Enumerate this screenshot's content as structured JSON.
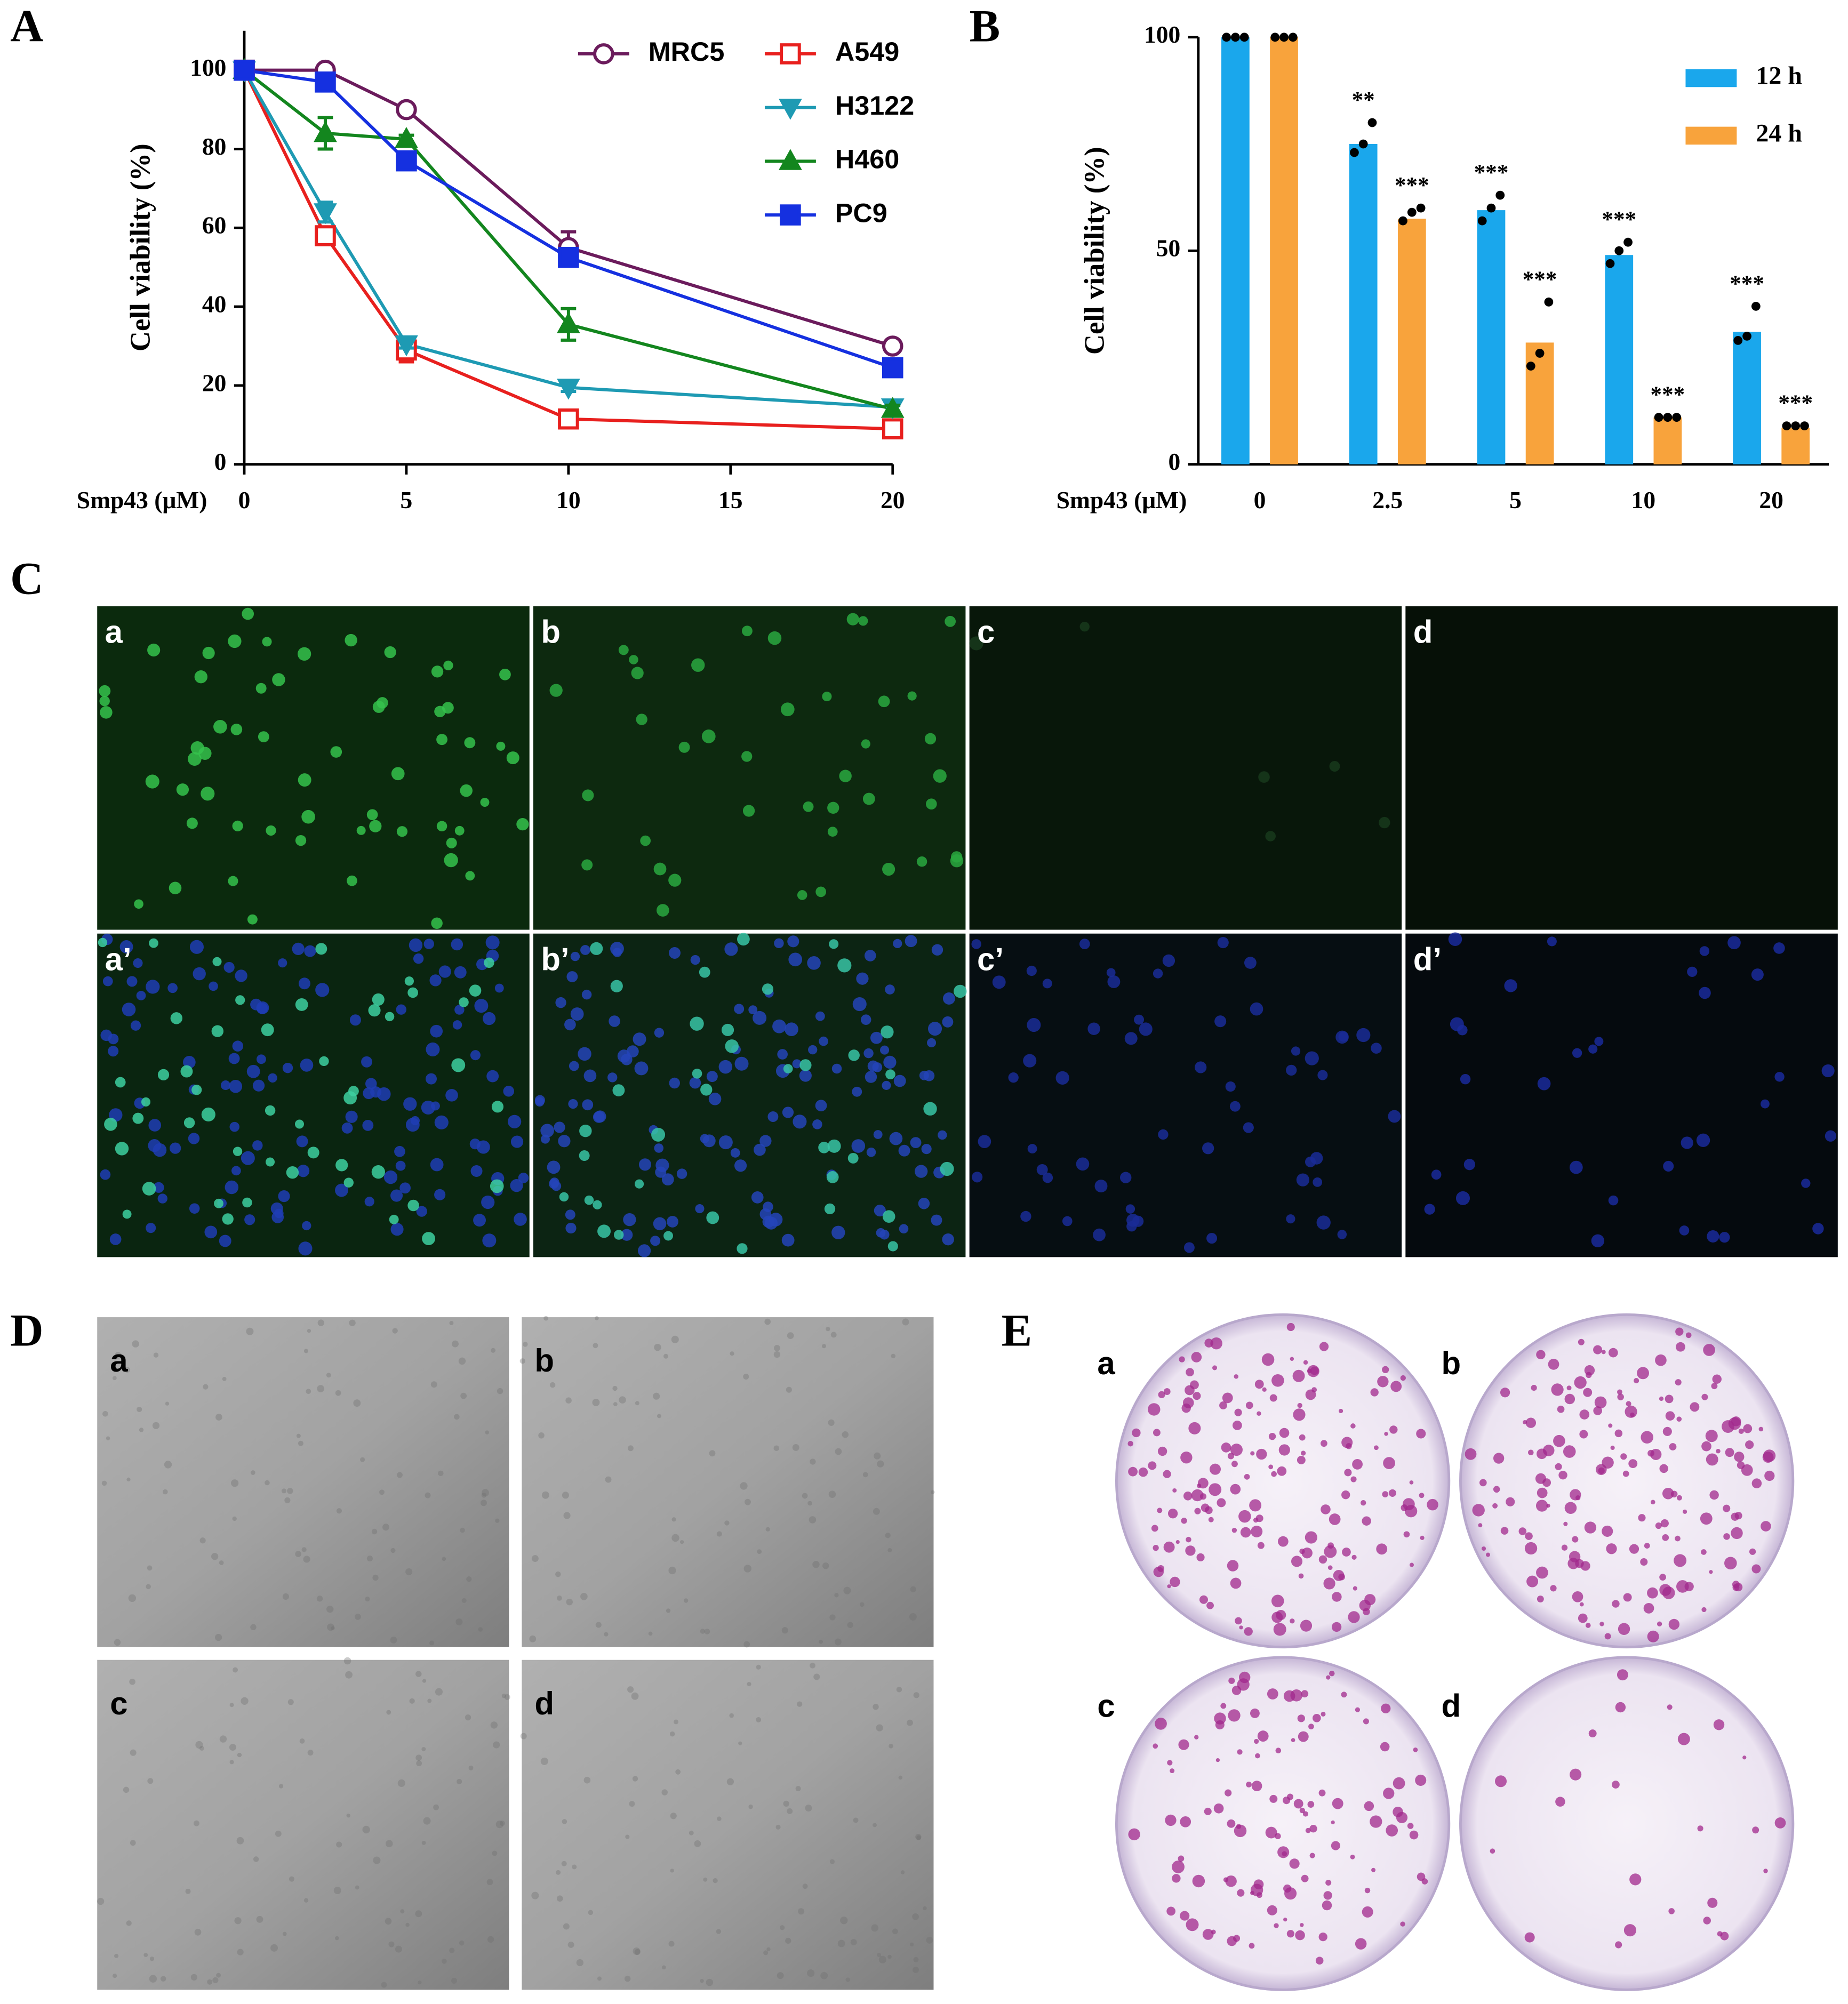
{
  "chart_data": [
    {
      "type": "line",
      "panel_label": "A",
      "xlabel": "Smp43 (μM)",
      "ylabel": "Cell viability (%)",
      "x": [
        0,
        2.5,
        5,
        10,
        20
      ],
      "xlim": [
        0,
        20
      ],
      "xticks": [
        0,
        5,
        10,
        15,
        20
      ],
      "ylim": [
        0,
        110
      ],
      "yticks": [
        0,
        20,
        40,
        60,
        80,
        100
      ],
      "legend": "upper right",
      "series": [
        {
          "name": "MRC5",
          "color": "#6b1b5c",
          "marker": "circle-open",
          "values": [
            100,
            100,
            90,
            55,
            30
          ],
          "errors": [
            1,
            1,
            1,
            4,
            1
          ]
        },
        {
          "name": "A549",
          "color": "#e8201e",
          "marker": "square-open",
          "values": [
            100,
            58,
            29,
            11.5,
            9
          ],
          "errors": [
            1,
            1,
            3,
            1,
            1
          ]
        },
        {
          "name": "H3122",
          "color": "#1e9ab3",
          "marker": "triangle-down",
          "values": [
            100,
            64,
            30.5,
            19.5,
            14.5
          ],
          "errors": [
            1,
            2.5,
            1,
            1,
            1
          ]
        },
        {
          "name": "H460",
          "color": "#13861e",
          "marker": "triangle-up",
          "values": [
            100,
            84,
            82.5,
            35.5,
            14
          ],
          "errors": [
            1,
            4,
            1,
            4,
            1
          ]
        },
        {
          "name": "PC9",
          "color": "#1530e0",
          "marker": "square",
          "values": [
            100,
            97,
            77,
            52.5,
            24.5
          ],
          "errors": [
            1,
            1,
            1,
            2,
            1
          ]
        }
      ]
    },
    {
      "type": "bar",
      "panel_label": "B",
      "xlabel": "Smp43 (μM)",
      "ylabel": "Cell viability (%)",
      "categories": [
        "0",
        "2.5",
        "5",
        "10",
        "20"
      ],
      "ylim": [
        0,
        100
      ],
      "yticks": [
        0,
        50,
        100
      ],
      "legend": "upper right",
      "series": [
        {
          "name": "12 h",
          "color": "#1aa7ec",
          "values": [
            100,
            75,
            59.5,
            49,
            31
          ],
          "points": [
            [
              100,
              100,
              100
            ],
            [
              73,
              75,
              80
            ],
            [
              57,
              60,
              63
            ],
            [
              47,
              50,
              52
            ],
            [
              29,
              30,
              37
            ]
          ],
          "significance": [
            null,
            "**",
            "***",
            "***",
            "***"
          ]
        },
        {
          "name": "24 h",
          "color": "#f8a33c",
          "values": [
            100,
            57.5,
            28.5,
            11,
            8.5
          ],
          "points": [
            [
              100,
              100,
              100
            ],
            [
              57,
              59,
              60
            ],
            [
              23,
              26,
              38
            ],
            [
              11,
              11,
              11
            ],
            [
              9,
              9,
              9
            ]
          ],
          "significance": [
            null,
            "***",
            "***",
            "***",
            "***"
          ]
        }
      ]
    }
  ],
  "panels": [
    {
      "label": "C",
      "tiles": [
        "a",
        "b",
        "c",
        "d",
        "a’",
        "b’",
        "c’",
        "d’"
      ]
    },
    {
      "label": "D",
      "tiles": [
        "a",
        "b",
        "c",
        "d"
      ]
    },
    {
      "label": "E",
      "tiles": [
        "a",
        "b",
        "c",
        "d"
      ]
    }
  ]
}
